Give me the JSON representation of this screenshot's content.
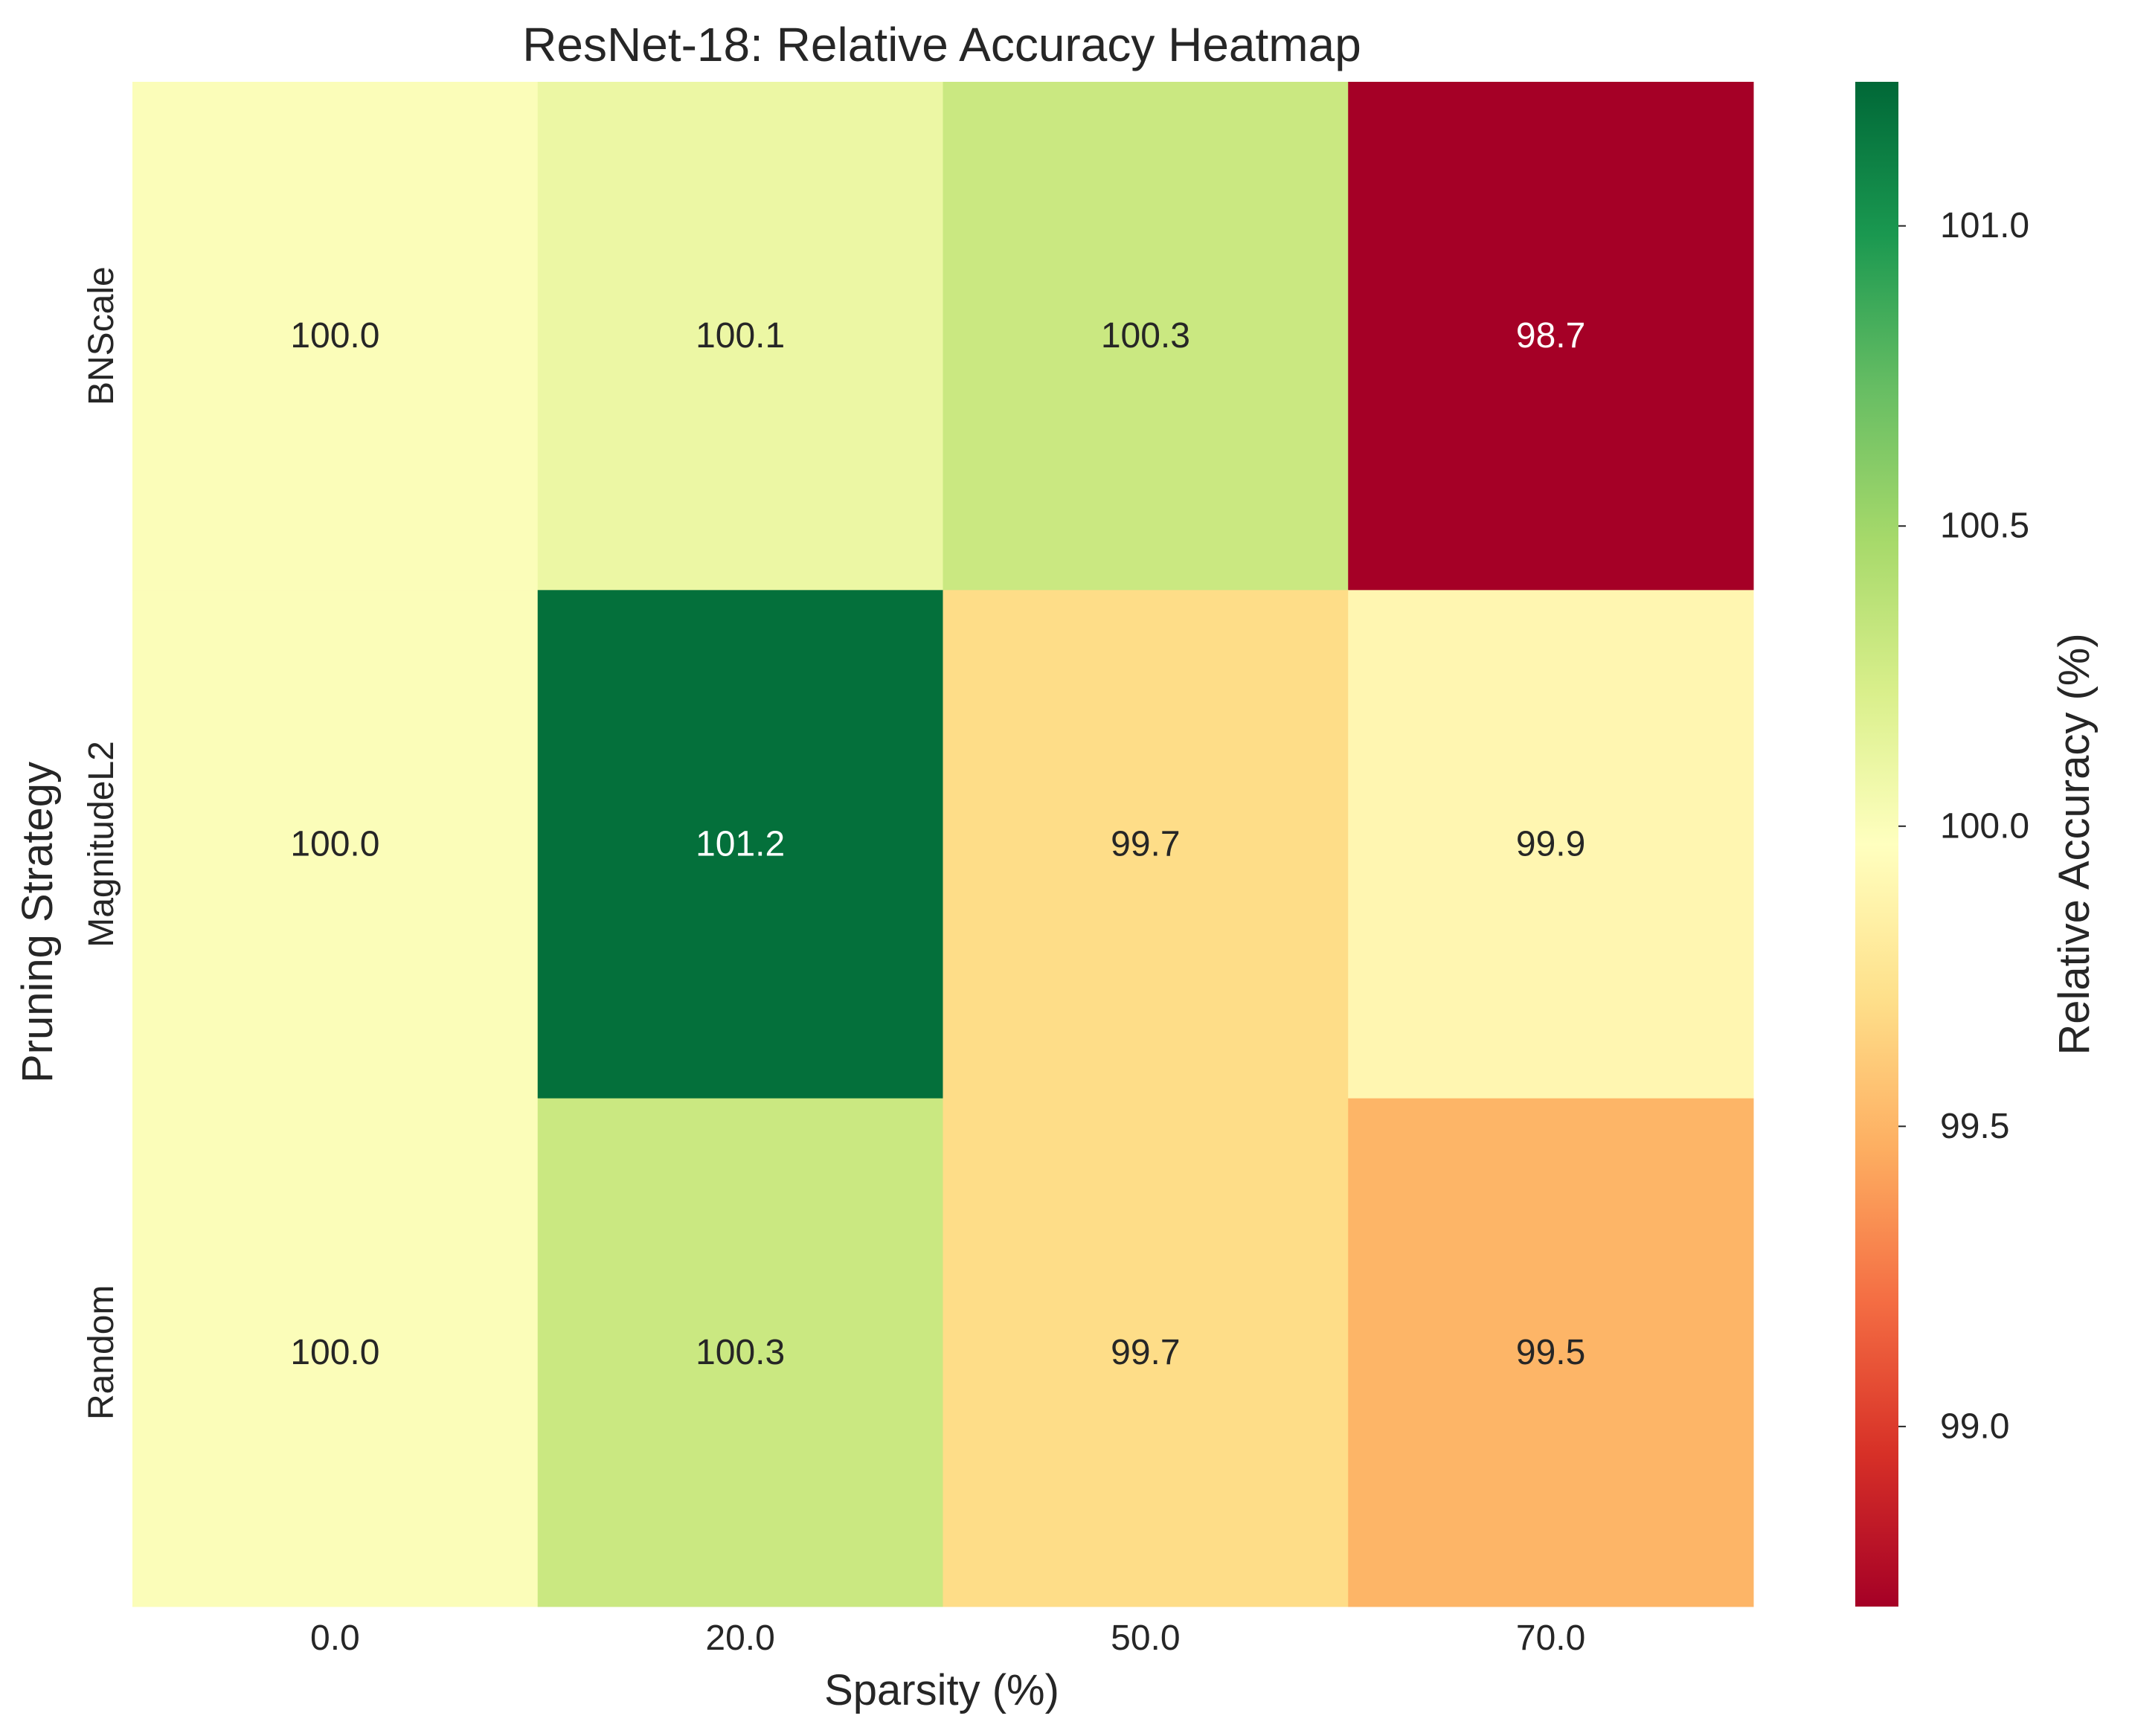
{
  "chart_data": {
    "type": "heatmap",
    "title": "ResNet-18: Relative Accuracy Heatmap",
    "xlabel": "Sparsity (%)",
    "ylabel": "Pruning Strategy",
    "x_categories": [
      "0.0",
      "20.0",
      "50.0",
      "70.0"
    ],
    "y_categories": [
      "BNScale",
      "MagnitudeL2",
      "Random"
    ],
    "values": [
      [
        100.0,
        100.1,
        100.3,
        98.7
      ],
      [
        100.0,
        101.2,
        99.7,
        99.9
      ],
      [
        100.0,
        100.3,
        99.7,
        99.5
      ]
    ],
    "value_labels": [
      [
        "100.0",
        "100.1",
        "100.3",
        "98.7"
      ],
      [
        "100.0",
        "101.2",
        "99.7",
        "99.9"
      ],
      [
        "100.0",
        "100.3",
        "99.7",
        "99.5"
      ]
    ],
    "colormap": "RdYlGn",
    "colorbar": {
      "label": "Relative Accuracy (%)",
      "range": [
        98.7,
        101.24
      ],
      "ticks": [
        99.0,
        99.5,
        100.0,
        100.5,
        101.0
      ],
      "tick_labels": [
        "99.0",
        "99.5",
        "100.0",
        "100.5",
        "101.0"
      ]
    },
    "grid": false
  }
}
